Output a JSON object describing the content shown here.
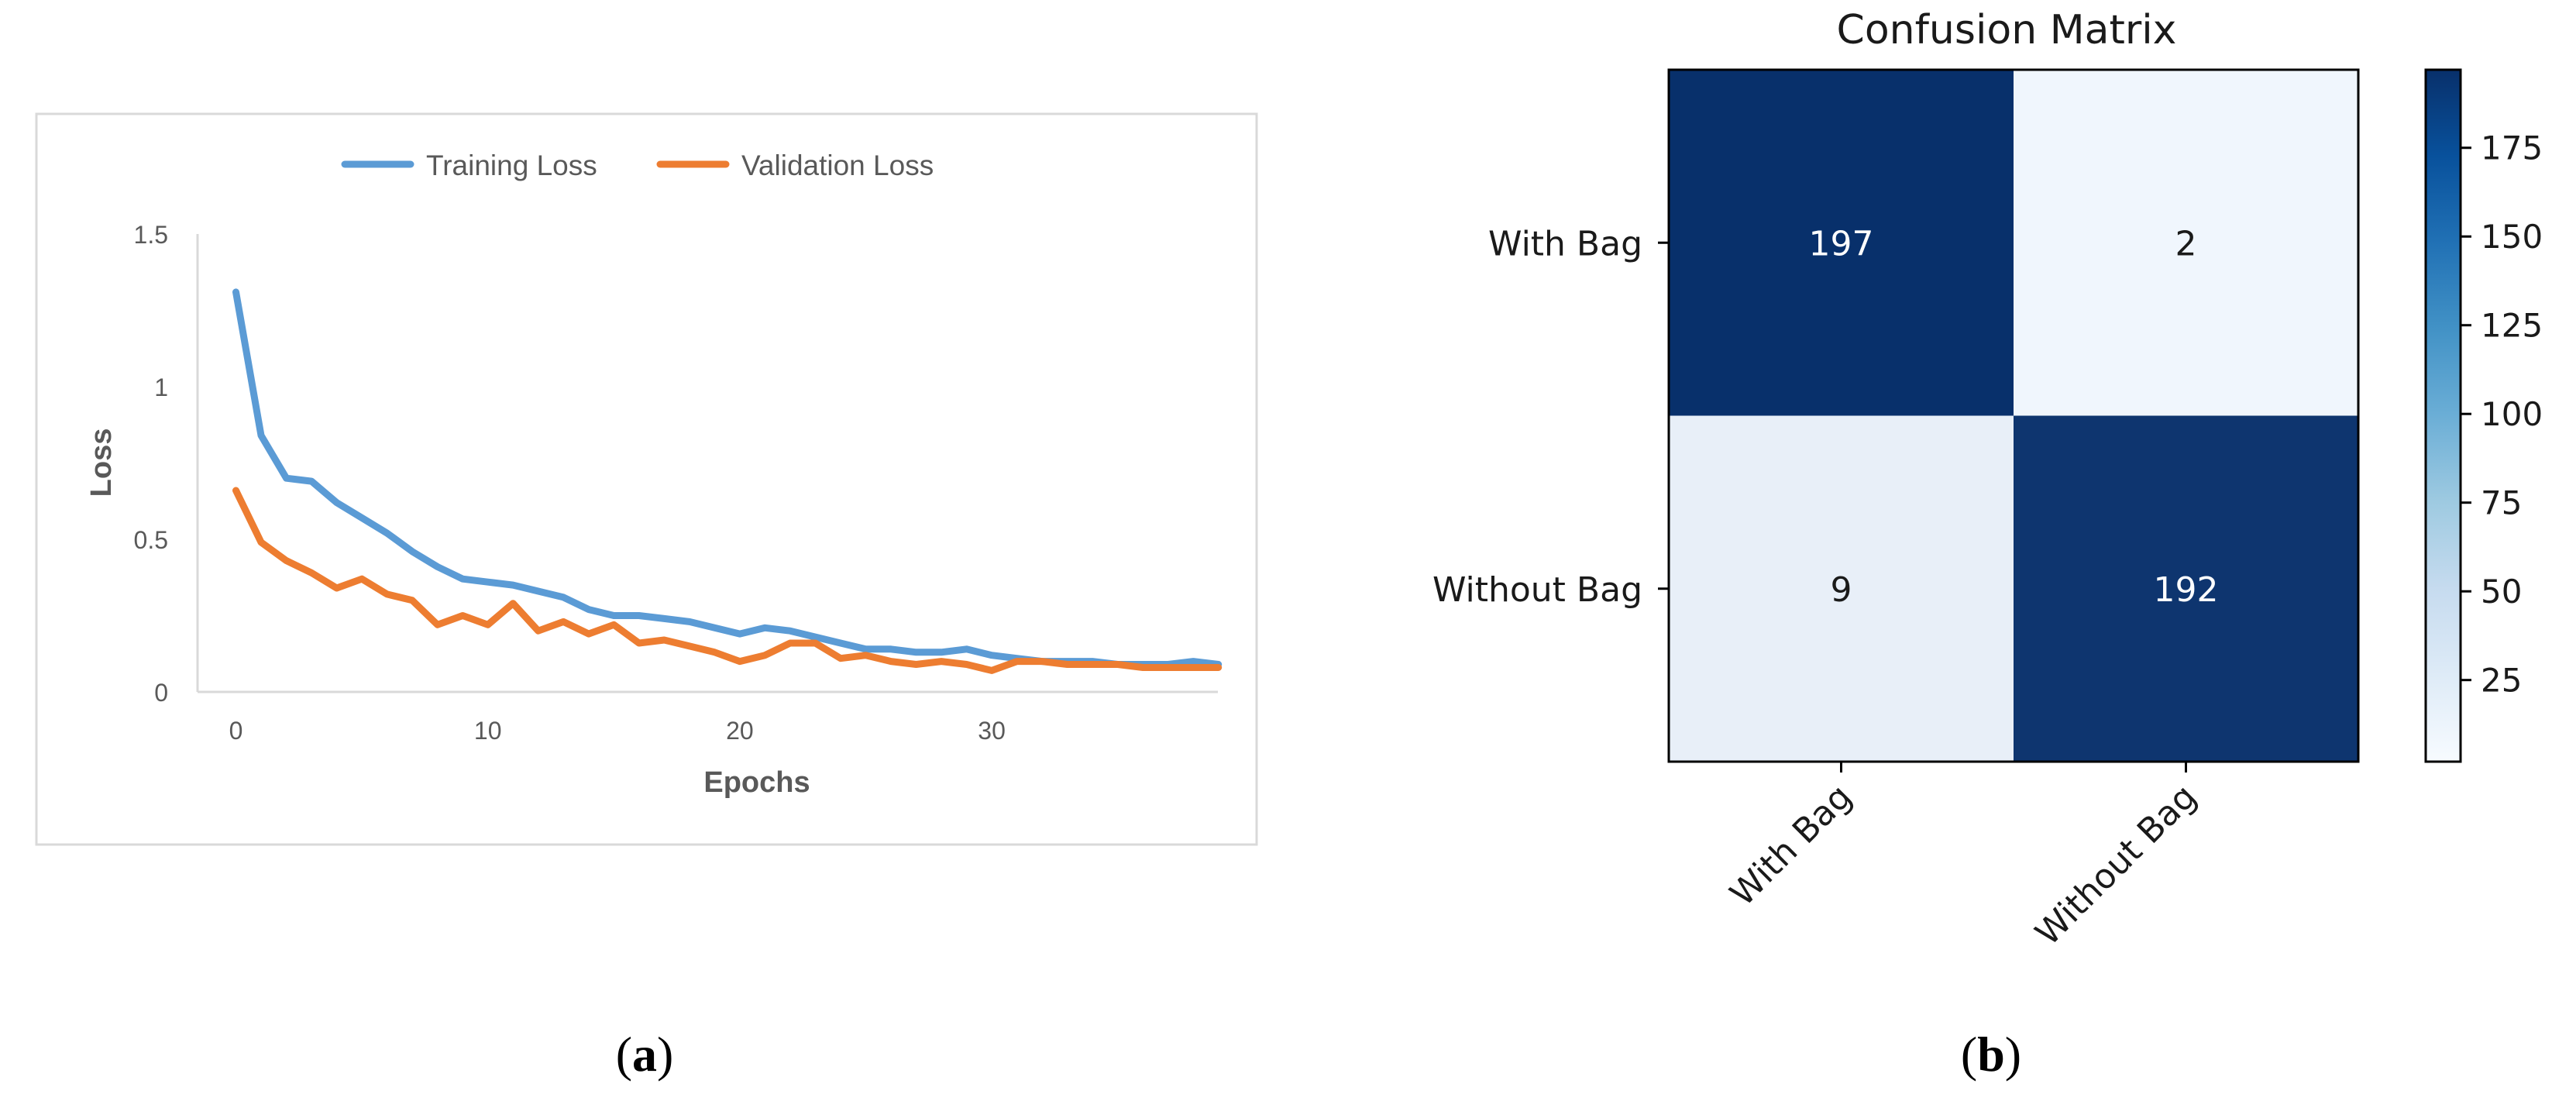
{
  "panels": {
    "a_label": "a",
    "b_label": "b"
  },
  "colors": {
    "training": "#5B9BD5",
    "validation": "#ED7D31",
    "dark_blue": "#08306B",
    "light_blue": "#F0F6FD",
    "axis_text": "#595959"
  },
  "chart_data": [
    {
      "type": "line",
      "title": "",
      "xlabel": "Epochs",
      "ylabel": "Loss",
      "xlim": [
        -1,
        39.5
      ],
      "ylim": [
        0,
        1.5
      ],
      "xticks": [
        0,
        10,
        20,
        30
      ],
      "yticks": [
        0,
        0.5,
        1,
        1.5
      ],
      "ytick_labels": [
        "0",
        "0.5",
        "1",
        "1.5"
      ],
      "grid": false,
      "legend": "top",
      "x": [
        0,
        1,
        2,
        3,
        4,
        5,
        6,
        7,
        8,
        9,
        10,
        11,
        12,
        13,
        14,
        15,
        16,
        17,
        18,
        19,
        20,
        21,
        22,
        23,
        24,
        25,
        26,
        27,
        28,
        29,
        30,
        31,
        32,
        33,
        34,
        35,
        36,
        37,
        38,
        39
      ],
      "series": [
        {
          "name": "Training Loss",
          "values": [
            1.31,
            0.84,
            0.7,
            0.69,
            0.62,
            0.57,
            0.52,
            0.46,
            0.41,
            0.37,
            0.36,
            0.35,
            0.33,
            0.31,
            0.27,
            0.25,
            0.25,
            0.24,
            0.23,
            0.21,
            0.19,
            0.21,
            0.2,
            0.18,
            0.16,
            0.14,
            0.14,
            0.13,
            0.13,
            0.14,
            0.12,
            0.11,
            0.1,
            0.1,
            0.1,
            0.09,
            0.09,
            0.09,
            0.1,
            0.09
          ]
        },
        {
          "name": "Validation Loss",
          "values": [
            0.66,
            0.49,
            0.43,
            0.39,
            0.34,
            0.37,
            0.32,
            0.3,
            0.22,
            0.25,
            0.22,
            0.29,
            0.2,
            0.23,
            0.19,
            0.22,
            0.16,
            0.17,
            0.15,
            0.13,
            0.1,
            0.12,
            0.16,
            0.16,
            0.11,
            0.12,
            0.1,
            0.09,
            0.1,
            0.09,
            0.07,
            0.1,
            0.1,
            0.09,
            0.09,
            0.09,
            0.08,
            0.08,
            0.08,
            0.08
          ]
        }
      ]
    },
    {
      "type": "heatmap",
      "title": "Confusion Matrix",
      "row_labels": [
        "With Bag",
        "Without Bag"
      ],
      "col_labels": [
        "With Bag",
        "Without Bag"
      ],
      "values": [
        [
          197,
          2
        ],
        [
          9,
          192
        ]
      ],
      "colorbar": {
        "ticks": [
          25,
          50,
          75,
          100,
          125,
          150,
          175
        ],
        "range": [
          2,
          197
        ],
        "colormap": "Blues"
      }
    }
  ]
}
